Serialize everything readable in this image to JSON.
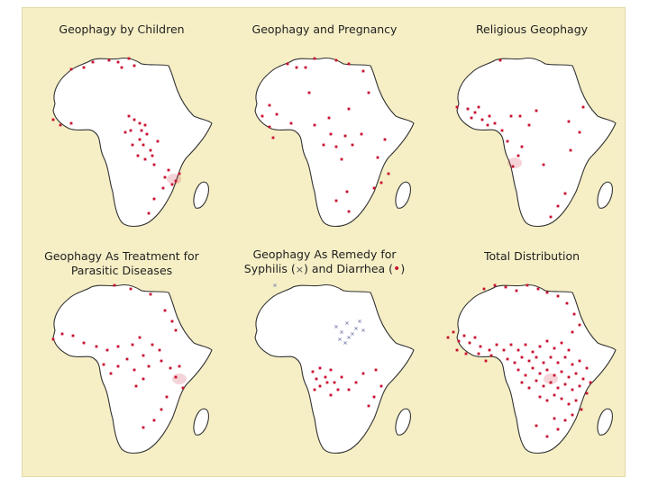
{
  "colors": {
    "background": "#f6efc6",
    "land": "#ffffff",
    "outline": "#333333",
    "site": "#c8102e",
    "syphilis": "#8a8fb5"
  },
  "maps": [
    {
      "id": "children",
      "title_lines": [
        "Geophagy by Children"
      ],
      "sites": [
        [
          0.32,
          0.06
        ],
        [
          0.41,
          0.05
        ],
        [
          0.46,
          0.06
        ],
        [
          0.52,
          0.04
        ],
        [
          0.27,
          0.09
        ],
        [
          0.48,
          0.09
        ],
        [
          0.55,
          0.08
        ],
        [
          0.2,
          0.1
        ],
        [
          0.1,
          0.38
        ],
        [
          0.2,
          0.4
        ],
        [
          0.14,
          0.41
        ],
        [
          0.55,
          0.38
        ],
        [
          0.58,
          0.4
        ],
        [
          0.61,
          0.41
        ],
        [
          0.59,
          0.44
        ],
        [
          0.62,
          0.46
        ],
        [
          0.58,
          0.49
        ],
        [
          0.54,
          0.52
        ],
        [
          0.6,
          0.52
        ],
        [
          0.64,
          0.55
        ],
        [
          0.57,
          0.58
        ],
        [
          0.61,
          0.6
        ],
        [
          0.65,
          0.58
        ],
        [
          0.68,
          0.5
        ],
        [
          0.53,
          0.44
        ],
        [
          0.66,
          0.63
        ],
        [
          0.72,
          0.7
        ],
        [
          0.74,
          0.66
        ],
        [
          0.78,
          0.72
        ],
        [
          0.8,
          0.68
        ],
        [
          0.76,
          0.74
        ],
        [
          0.71,
          0.76
        ],
        [
          0.66,
          0.82
        ],
        [
          0.63,
          0.9
        ],
        [
          0.5,
          0.45
        ],
        [
          0.52,
          0.36
        ]
      ],
      "red_blob": [
        0.77,
        0.71
      ]
    },
    {
      "id": "pregnancy",
      "title_lines": [
        "Geophagy and Pregnancy"
      ],
      "sites": [
        [
          0.28,
          0.07
        ],
        [
          0.38,
          0.09
        ],
        [
          0.43,
          0.04
        ],
        [
          0.55,
          0.05
        ],
        [
          0.62,
          0.07
        ],
        [
          0.7,
          0.11
        ],
        [
          0.73,
          0.23
        ],
        [
          0.4,
          0.23
        ],
        [
          0.18,
          0.3
        ],
        [
          0.14,
          0.36
        ],
        [
          0.22,
          0.35
        ],
        [
          0.18,
          0.42
        ],
        [
          0.2,
          0.48
        ],
        [
          0.3,
          0.4
        ],
        [
          0.43,
          0.41
        ],
        [
          0.51,
          0.37
        ],
        [
          0.62,
          0.32
        ],
        [
          0.52,
          0.46
        ],
        [
          0.6,
          0.47
        ],
        [
          0.55,
          0.53
        ],
        [
          0.48,
          0.52
        ],
        [
          0.58,
          0.6
        ],
        [
          0.64,
          0.52
        ],
        [
          0.69,
          0.46
        ],
        [
          0.82,
          0.49
        ],
        [
          0.78,
          0.59
        ],
        [
          0.84,
          0.68
        ],
        [
          0.8,
          0.73
        ],
        [
          0.76,
          0.76
        ],
        [
          0.61,
          0.78
        ],
        [
          0.55,
          0.83
        ],
        [
          0.62,
          0.89
        ],
        [
          0.33,
          0.09
        ]
      ]
    },
    {
      "id": "religious",
      "title_lines": [
        "Religious Geophagy"
      ],
      "sites": [
        [
          0.34,
          0.05
        ],
        [
          0.1,
          0.31
        ],
        [
          0.16,
          0.32
        ],
        [
          0.2,
          0.34
        ],
        [
          0.22,
          0.31
        ],
        [
          0.28,
          0.36
        ],
        [
          0.18,
          0.37
        ],
        [
          0.24,
          0.38
        ],
        [
          0.27,
          0.41
        ],
        [
          0.31,
          0.4
        ],
        [
          0.35,
          0.44
        ],
        [
          0.4,
          0.36
        ],
        [
          0.45,
          0.36
        ],
        [
          0.54,
          0.33
        ],
        [
          0.5,
          0.41
        ],
        [
          0.38,
          0.5
        ],
        [
          0.44,
          0.58
        ],
        [
          0.41,
          0.64
        ],
        [
          0.46,
          0.53
        ],
        [
          0.58,
          0.63
        ],
        [
          0.72,
          0.39
        ],
        [
          0.78,
          0.45
        ],
        [
          0.8,
          0.31
        ],
        [
          0.73,
          0.55
        ],
        [
          0.7,
          0.79
        ],
        [
          0.66,
          0.86
        ],
        [
          0.62,
          0.92
        ]
      ],
      "red_blob": [
        0.42,
        0.62
      ]
    },
    {
      "id": "parasitic",
      "title_lines": [
        "Geophagy As Treatment for",
        "Parasitic Diseases"
      ],
      "sites": [
        [
          0.44,
          0.04
        ],
        [
          0.53,
          0.06
        ],
        [
          0.64,
          0.09
        ],
        [
          0.72,
          0.18
        ],
        [
          0.76,
          0.24
        ],
        [
          0.78,
          0.29
        ],
        [
          0.1,
          0.34
        ],
        [
          0.15,
          0.31
        ],
        [
          0.21,
          0.32
        ],
        [
          0.27,
          0.36
        ],
        [
          0.34,
          0.38
        ],
        [
          0.4,
          0.4
        ],
        [
          0.46,
          0.38
        ],
        [
          0.54,
          0.37
        ],
        [
          0.58,
          0.33
        ],
        [
          0.65,
          0.37
        ],
        [
          0.69,
          0.4
        ],
        [
          0.6,
          0.43
        ],
        [
          0.51,
          0.45
        ],
        [
          0.46,
          0.49
        ],
        [
          0.55,
          0.51
        ],
        [
          0.63,
          0.49
        ],
        [
          0.7,
          0.46
        ],
        [
          0.75,
          0.5
        ],
        [
          0.78,
          0.55
        ],
        [
          0.8,
          0.49
        ],
        [
          0.82,
          0.61
        ],
        [
          0.73,
          0.66
        ],
        [
          0.7,
          0.73
        ],
        [
          0.66,
          0.79
        ],
        [
          0.6,
          0.83
        ],
        [
          0.6,
          0.56
        ],
        [
          0.56,
          0.6
        ],
        [
          0.38,
          0.48
        ],
        [
          0.42,
          0.53
        ]
      ],
      "red_blob": [
        0.8,
        0.56
      ]
    },
    {
      "id": "syphilis-diarrhea",
      "title_lines": [
        "Geophagy As Remedy for",
        "Syphilis (×) and Diarrhea (•)"
      ],
      "legend": {
        "syphilis_symbol": "×",
        "diarrhea_symbol": "•"
      },
      "sites": [
        [
          0.42,
          0.52
        ],
        [
          0.44,
          0.56
        ],
        [
          0.46,
          0.5
        ],
        [
          0.49,
          0.55
        ],
        [
          0.52,
          0.51
        ],
        [
          0.5,
          0.58
        ],
        [
          0.46,
          0.6
        ],
        [
          0.54,
          0.58
        ],
        [
          0.58,
          0.55
        ],
        [
          0.56,
          0.62
        ],
        [
          0.62,
          0.62
        ],
        [
          0.66,
          0.58
        ],
        [
          0.7,
          0.53
        ],
        [
          0.77,
          0.51
        ],
        [
          0.8,
          0.6
        ],
        [
          0.76,
          0.66
        ],
        [
          0.73,
          0.71
        ],
        [
          0.52,
          0.65
        ],
        [
          0.43,
          0.62
        ]
      ],
      "cross_sites": [
        [
          0.55,
          0.27
        ],
        [
          0.58,
          0.3
        ],
        [
          0.61,
          0.25
        ],
        [
          0.64,
          0.31
        ],
        [
          0.6,
          0.36
        ],
        [
          0.66,
          0.28
        ],
        [
          0.68,
          0.24
        ],
        [
          0.62,
          0.33
        ],
        [
          0.57,
          0.34
        ],
        [
          0.7,
          0.29
        ],
        [
          0.21,
          0.04
        ]
      ]
    },
    {
      "id": "total",
      "title_lines": [
        "Total Distribution"
      ],
      "sites": [
        [
          0.25,
          0.06
        ],
        [
          0.31,
          0.04
        ],
        [
          0.37,
          0.05
        ],
        [
          0.43,
          0.07
        ],
        [
          0.49,
          0.04
        ],
        [
          0.55,
          0.06
        ],
        [
          0.6,
          0.08
        ],
        [
          0.66,
          0.1
        ],
        [
          0.71,
          0.14
        ],
        [
          0.75,
          0.2
        ],
        [
          0.78,
          0.26
        ],
        [
          0.74,
          0.3
        ],
        [
          0.05,
          0.33
        ],
        [
          0.08,
          0.3
        ],
        [
          0.11,
          0.35
        ],
        [
          0.14,
          0.32
        ],
        [
          0.17,
          0.36
        ],
        [
          0.2,
          0.33
        ],
        [
          0.23,
          0.38
        ],
        [
          0.1,
          0.4
        ],
        [
          0.15,
          0.42
        ],
        [
          0.22,
          0.42
        ],
        [
          0.28,
          0.4
        ],
        [
          0.32,
          0.37
        ],
        [
          0.36,
          0.4
        ],
        [
          0.4,
          0.37
        ],
        [
          0.44,
          0.4
        ],
        [
          0.48,
          0.37
        ],
        [
          0.52,
          0.41
        ],
        [
          0.56,
          0.38
        ],
        [
          0.6,
          0.35
        ],
        [
          0.64,
          0.39
        ],
        [
          0.68,
          0.36
        ],
        [
          0.72,
          0.4
        ],
        [
          0.38,
          0.45
        ],
        [
          0.42,
          0.47
        ],
        [
          0.46,
          0.44
        ],
        [
          0.5,
          0.46
        ],
        [
          0.54,
          0.44
        ],
        [
          0.58,
          0.47
        ],
        [
          0.62,
          0.44
        ],
        [
          0.66,
          0.47
        ],
        [
          0.7,
          0.44
        ],
        [
          0.74,
          0.48
        ],
        [
          0.78,
          0.46
        ],
        [
          0.82,
          0.5
        ],
        [
          0.44,
          0.51
        ],
        [
          0.48,
          0.54
        ],
        [
          0.52,
          0.5
        ],
        [
          0.56,
          0.53
        ],
        [
          0.6,
          0.51
        ],
        [
          0.64,
          0.54
        ],
        [
          0.68,
          0.52
        ],
        [
          0.72,
          0.55
        ],
        [
          0.76,
          0.53
        ],
        [
          0.8,
          0.56
        ],
        [
          0.84,
          0.58
        ],
        [
          0.46,
          0.58
        ],
        [
          0.5,
          0.61
        ],
        [
          0.54,
          0.57
        ],
        [
          0.58,
          0.6
        ],
        [
          0.62,
          0.58
        ],
        [
          0.66,
          0.61
        ],
        [
          0.7,
          0.59
        ],
        [
          0.74,
          0.62
        ],
        [
          0.78,
          0.6
        ],
        [
          0.82,
          0.64
        ],
        [
          0.56,
          0.66
        ],
        [
          0.6,
          0.68
        ],
        [
          0.64,
          0.65
        ],
        [
          0.68,
          0.67
        ],
        [
          0.72,
          0.7
        ],
        [
          0.76,
          0.68
        ],
        [
          0.79,
          0.73
        ],
        [
          0.74,
          0.76
        ],
        [
          0.7,
          0.79
        ],
        [
          0.64,
          0.78
        ],
        [
          0.66,
          0.84
        ],
        [
          0.6,
          0.88
        ],
        [
          0.54,
          0.82
        ],
        [
          0.29,
          0.43
        ],
        [
          0.26,
          0.46
        ]
      ],
      "red_blob": [
        0.62,
        0.56
      ]
    }
  ]
}
